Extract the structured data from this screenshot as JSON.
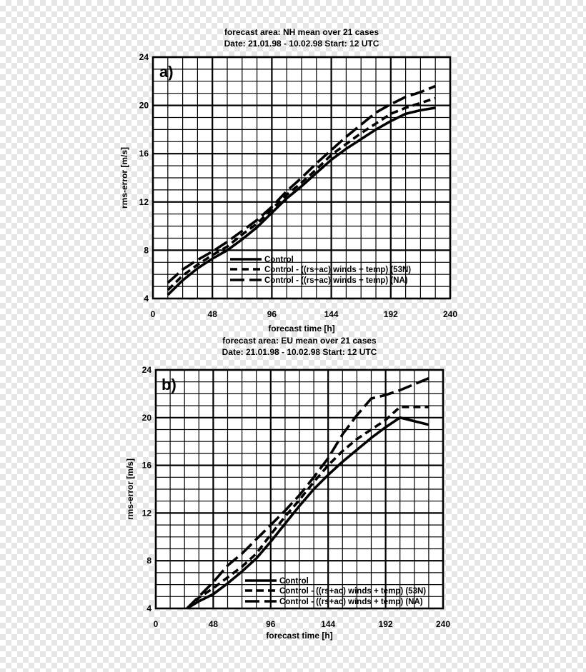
{
  "chart_data": [
    {
      "type": "line",
      "panel_label": "a)",
      "title_line1": "forecast area: NH      mean over 21 cases",
      "title_line2": "Date: 21.01.98 - 10.02.98   Start: 12 UTC",
      "xlabel": "forecast time [h]",
      "ylabel": "rms-error [m/s]",
      "xlim": [
        0,
        240
      ],
      "ylim": [
        4,
        24
      ],
      "xticks": [
        0,
        48,
        96,
        144,
        192,
        240
      ],
      "yticks": [
        4,
        8,
        12,
        16,
        20,
        24
      ],
      "grid": true,
      "legend_position": "bottom-right",
      "x": [
        12,
        24,
        36,
        48,
        60,
        72,
        84,
        96,
        108,
        120,
        132,
        144,
        156,
        168,
        180,
        192,
        204,
        216,
        228
      ],
      "series": [
        {
          "name": "Control",
          "style": "solid",
          "values": [
            4.3,
            5.5,
            6.5,
            7.3,
            8.0,
            8.9,
            9.9,
            11.1,
            12.3,
            13.3,
            14.4,
            15.5,
            16.4,
            17.2,
            18.0,
            18.7,
            19.3,
            19.6,
            19.8
          ]
        },
        {
          "name": "Control - ((rs+ac) winds + temp) (53N)",
          "style": "dashed",
          "values": [
            4.7,
            5.9,
            6.8,
            7.6,
            8.3,
            9.3,
            10.2,
            11.4,
            12.6,
            13.6,
            14.7,
            15.9,
            16.8,
            17.7,
            18.5,
            19.3,
            19.8,
            20.2,
            20.6
          ]
        },
        {
          "name": "Control - ((rs+ac) winds + temp)  (NA)",
          "style": "longdash",
          "values": [
            5.3,
            6.4,
            7.2,
            7.9,
            8.7,
            9.6,
            10.5,
            11.6,
            12.9,
            14.0,
            15.2,
            16.3,
            17.4,
            18.4,
            19.4,
            20.1,
            20.7,
            21.1,
            21.6
          ]
        }
      ]
    },
    {
      "type": "line",
      "panel_label": "b)",
      "title_line1": "forecast area: EU      mean over 21 cases",
      "title_line2": "Date: 21.01.98 - 10.02.98   Start: 12 UTC",
      "xlabel": "forecast time [h]",
      "ylabel": "rms-error [m/s]",
      "xlim": [
        0,
        240
      ],
      "ylim": [
        4,
        24
      ],
      "xticks": [
        0,
        48,
        96,
        144,
        192,
        240
      ],
      "yticks": [
        4,
        8,
        12,
        16,
        20,
        24
      ],
      "grid": true,
      "legend_position": "bottom-right",
      "x": [
        26,
        36,
        48,
        60,
        72,
        84,
        96,
        108,
        120,
        132,
        144,
        156,
        168,
        180,
        192,
        204,
        216,
        228
      ],
      "series": [
        {
          "name": "Control",
          "style": "solid",
          "values": [
            4.0,
            4.6,
            5.2,
            6.1,
            7.1,
            8.2,
            9.6,
            11.1,
            12.6,
            14.0,
            15.2,
            16.3,
            17.3,
            18.3,
            19.2,
            20.0,
            19.7,
            19.4
          ]
        },
        {
          "name": "Control - ((rs+ac) winds + temp) (53N)",
          "style": "dashed",
          "values": [
            4.0,
            4.9,
            5.7,
            6.6,
            7.5,
            8.6,
            10.2,
            11.7,
            13.1,
            14.6,
            16.0,
            17.2,
            18.2,
            19.0,
            19.8,
            20.9,
            20.9,
            20.9
          ]
        },
        {
          "name": "Control - ((rs+ac) winds + temp) (NA)",
          "style": "longdash",
          "values": [
            4.0,
            5.0,
            6.2,
            7.6,
            8.6,
            9.8,
            11.0,
            12.2,
            13.5,
            15.0,
            16.6,
            18.6,
            20.2,
            21.6,
            21.9,
            22.3,
            22.8,
            23.3
          ]
        }
      ]
    }
  ]
}
